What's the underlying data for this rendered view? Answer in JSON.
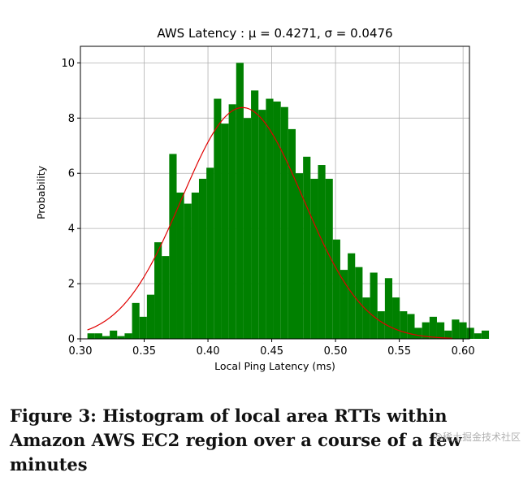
{
  "chart_data": {
    "type": "bar",
    "title": "AWS Latency :  μ = 0.4271,  σ = 0.0476",
    "xlabel": "Local Ping Latency (ms)",
    "ylabel": "Probability",
    "xlim": [
      0.3,
      0.605
    ],
    "ylim": [
      0,
      10.6
    ],
    "grid": true,
    "xticks": [
      "0.30",
      "0.35",
      "0.40",
      "0.45",
      "0.50",
      "0.55",
      "0.60"
    ],
    "xtick_values": [
      0.3,
      0.35,
      0.4,
      0.45,
      0.5,
      0.55,
      0.6
    ],
    "yticks": [
      "0",
      "2",
      "4",
      "6",
      "8",
      "10"
    ],
    "ytick_values": [
      0,
      2,
      4,
      6,
      8,
      10
    ],
    "bin_start": 0.3055,
    "bin_width": 0.00583,
    "values": [
      0.2,
      0.2,
      0.1,
      0.3,
      0.1,
      0.2,
      1.3,
      0.8,
      1.6,
      3.5,
      3.0,
      6.7,
      5.3,
      4.9,
      5.3,
      5.8,
      6.2,
      8.7,
      7.8,
      8.5,
      10.0,
      8.0,
      9.0,
      8.3,
      8.7,
      8.6,
      8.4,
      7.6,
      6.0,
      6.6,
      5.8,
      6.3,
      5.8,
      3.6,
      2.5,
      3.1,
      2.6,
      1.5,
      2.4,
      1.0,
      2.2,
      1.5,
      1.0,
      0.9,
      0.4,
      0.6,
      0.8,
      0.6,
      0.3,
      0.7,
      0.6,
      0.4,
      0.2,
      0.3
    ],
    "bar_color": "#008000",
    "fit_curve": {
      "mu": 0.4271,
      "sigma": 0.0476,
      "scale": 1.0,
      "color": "#e00000",
      "x_from": 0.3055,
      "x_to": 0.5915
    }
  },
  "caption": "Figure 3: Histogram of local area RTTs within Amazon AWS EC2 region over a course of a few minutes",
  "watermark": "@稀土掘金技术社区"
}
